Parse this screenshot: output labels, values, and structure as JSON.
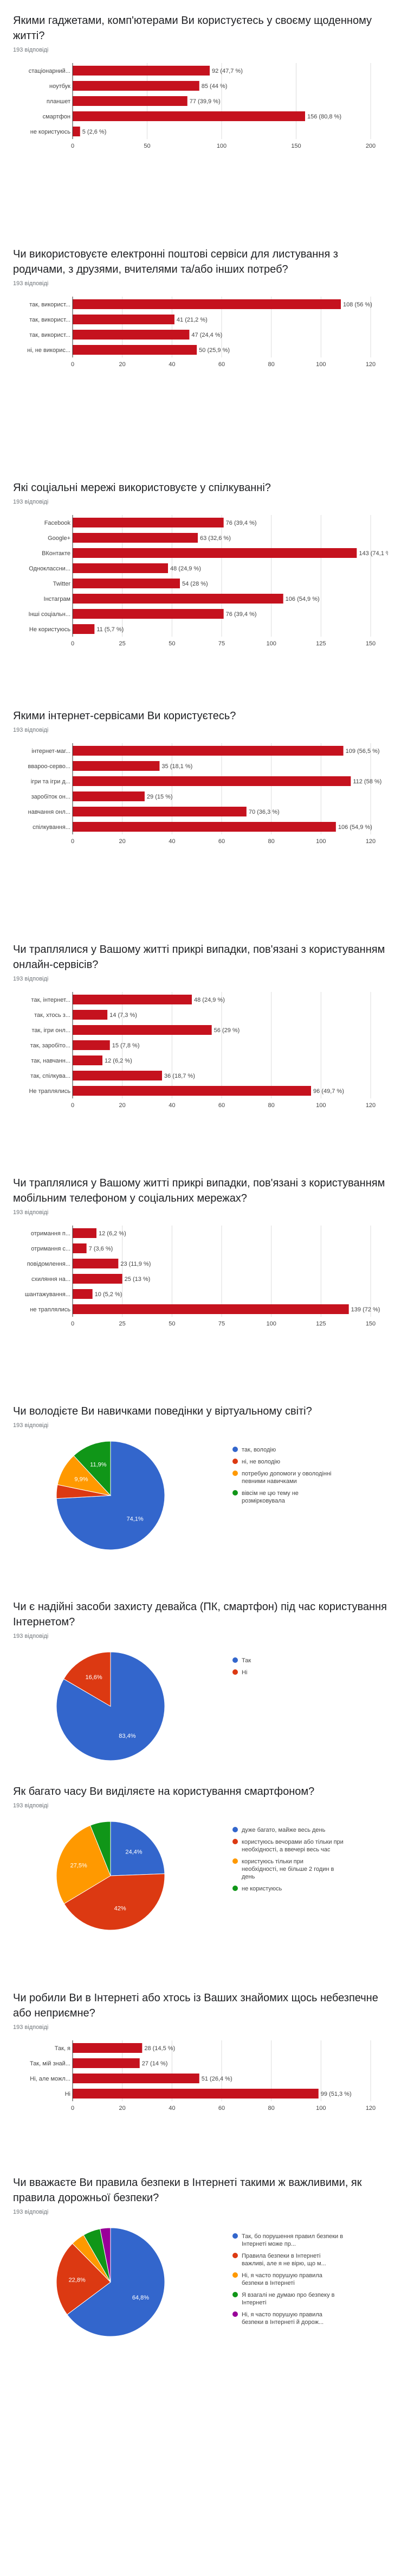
{
  "charts": [
    {
      "title": "Якими гаджетами, комп'ютерами Ви користуєтесь у своєму щоденному житті?",
      "count": "193 відповіді",
      "chart_data": {
        "type": "bar",
        "orientation": "horizontal",
        "categories": [
          "стаціонарний...",
          "ноутбук",
          "планшет",
          "смартфон",
          "не користуюсь"
        ],
        "values": [
          92,
          85,
          77,
          156,
          5
        ],
        "value_labels": [
          "92 (47,7 %)",
          "85 (44 %)",
          "77 (39,9 %)",
          "156 (80,8 %)",
          "5 (2,6 %)"
        ],
        "xlim": [
          0,
          200
        ],
        "ticks": [
          "0",
          "50",
          "100",
          "150",
          "200"
        ],
        "color": "#c5121e"
      }
    },
    {
      "title": "Чи використовуєте електронні поштові сервіси для листування з родичами, з друзями, вчителями та/або інших потреб?",
      "count": "193 відповіді",
      "chart_data": {
        "type": "bar",
        "orientation": "horizontal",
        "categories": [
          "так, використ...",
          "так, використ...",
          "так, використ...",
          "ні, не викорис..."
        ],
        "values": [
          108,
          41,
          47,
          50
        ],
        "value_labels": [
          "108 (56 %)",
          "41 (21,2 %)",
          "47 (24,4 %)",
          "50 (25,9 %)"
        ],
        "xlim": [
          0,
          120
        ],
        "ticks": [
          "0",
          "20",
          "40",
          "60",
          "80",
          "100",
          "120"
        ],
        "color": "#c5121e"
      }
    },
    {
      "title": "Які соціальні мережі використовуєте у спілкуванні?",
      "count": "193 відповіді",
      "chart_data": {
        "type": "bar",
        "orientation": "horizontal",
        "categories": [
          "Facebook",
          "Google+",
          "ВКонтакте",
          "Одноклассни...",
          "Twitter",
          "Інстаграм",
          "Інші соціальн...",
          "Не користуюсь"
        ],
        "values": [
          76,
          63,
          143,
          48,
          54,
          106,
          76,
          11
        ],
        "value_labels": [
          "76 (39,4 %)",
          "63 (32,6 %)",
          "143 (74,1 %)",
          "48 (24,9 %)",
          "54 (28 %)",
          "106 (54,9 %)",
          "76 (39,4 %)",
          "11 (5,7 %)"
        ],
        "xlim": [
          0,
          150
        ],
        "ticks": [
          "0",
          "25",
          "50",
          "75",
          "100",
          "125",
          "150"
        ],
        "color": "#c5121e"
      }
    },
    {
      "title": "Якими інтернет-сервісами Ви користуєтесь?",
      "count": "193 відповіді",
      "chart_data": {
        "type": "bar",
        "orientation": "horizontal",
        "categories": [
          "інтернет-маг...",
          "ввароо-серво...",
          "ігри та ігри д...",
          "заробіток он...",
          "навчання онл...",
          "спілкування..."
        ],
        "values": [
          109,
          35,
          112,
          29,
          70,
          106
        ],
        "value_labels": [
          "109 (56,5 %)",
          "35 (18,1 %)",
          "112 (58 %)",
          "29 (15 %)",
          "70 (36,3 %)",
          "106 (54,9 %)"
        ],
        "xlim": [
          0,
          120
        ],
        "ticks": [
          "0",
          "20",
          "40",
          "60",
          "80",
          "100",
          "120"
        ],
        "color": "#c5121e"
      }
    },
    {
      "title": "Чи траплялися у Вашому житті прикрі випадки, пов'язані з користуванням онлайн-сервісів?",
      "count": "193 відповіді",
      "chart_data": {
        "type": "bar",
        "orientation": "horizontal",
        "categories": [
          "так, інтернет...",
          "так, хтось з...",
          "так, ігри онл...",
          "так, заробіто...",
          "так, навчанн...",
          "так, спілкува...",
          "Не траплялись"
        ],
        "values": [
          48,
          14,
          56,
          15,
          12,
          36,
          96
        ],
        "value_labels": [
          "48 (24,9 %)",
          "14 (7,3 %)",
          "56 (29 %)",
          "15 (7,8 %)",
          "12 (6,2 %)",
          "36 (18,7 %)",
          "96 (49,7 %)"
        ],
        "xlim": [
          0,
          120
        ],
        "ticks": [
          "0",
          "20",
          "40",
          "60",
          "80",
          "100",
          "120"
        ],
        "color": "#c5121e"
      }
    },
    {
      "title": "Чи траплялися у Вашому житті прикрі випадки, пов'язані з користуванням мобільним телефоном у соціальних мережах?",
      "count": "193 відповіді",
      "chart_data": {
        "type": "bar",
        "orientation": "horizontal",
        "categories": [
          "отримання п...",
          "отримання с...",
          "повідомлення...",
          "схиляння на...",
          "шантажування...",
          "не траплялись"
        ],
        "values": [
          12,
          7,
          23,
          25,
          10,
          139
        ],
        "value_labels": [
          "12 (6,2 %)",
          "7 (3,6 %)",
          "23 (11,9 %)",
          "25 (13 %)",
          "10 (5,2 %)",
          "139 (72 %)"
        ],
        "xlim": [
          0,
          150
        ],
        "ticks": [
          "0",
          "25",
          "50",
          "75",
          "100",
          "125",
          "150"
        ],
        "color": "#c5121e"
      }
    },
    {
      "title": "Чи володієте Ви навичками поведінки у віртуальному світі?",
      "count": "193 відповіді",
      "chart_data": {
        "type": "pie",
        "slices": [
          {
            "label": "так, володію",
            "value": 74.1,
            "color": "#3366cc",
            "show": "74,1%"
          },
          {
            "label": "ні, не володію",
            "value": 4.1,
            "color": "#dc3912",
            "show": ""
          },
          {
            "label": "потребую допомоги у оволодінні певними навичками",
            "value": 9.9,
            "color": "#ff9900",
            "show": "9,9%"
          },
          {
            "label": "вівсім не цю тему не розмірковувала",
            "value": 11.9,
            "color": "#109618",
            "show": "11,9%"
          }
        ]
      }
    },
    {
      "title": "Чи є надійні засоби захисту девайса (ПК, смартфон) під час користування Інтернетом?",
      "count": "193 відповіді",
      "chart_data": {
        "type": "pie",
        "slices": [
          {
            "label": "Так",
            "value": 83.4,
            "color": "#3366cc",
            "show": "83,4%"
          },
          {
            "label": "Ні",
            "value": 16.6,
            "color": "#dc3912",
            "show": "16,6%"
          }
        ]
      }
    },
    {
      "title": "Як багато часу Ви виділяєте на користування смартфоном?",
      "count": "193 відповіді",
      "chart_data": {
        "type": "pie",
        "slices": [
          {
            "label": "дуже багато, майже весь день",
            "value": 24.4,
            "color": "#3366cc",
            "show": "24,4%"
          },
          {
            "label": "користуюсь вечорами або тільки при необхідності, а ввечері весь час",
            "value": 42,
            "color": "#dc3912",
            "show": "42%"
          },
          {
            "label": "користуюсь тільки при необхідності, не більше 2 годин в день",
            "value": 27.5,
            "color": "#ff9900",
            "show": "27,5%"
          },
          {
            "label": "не користуюсь",
            "value": 6.1,
            "color": "#109618",
            "show": ""
          }
        ]
      }
    },
    {
      "title": "Чи робили Ви в Інтернеті або хтось із Ваших знайомих щось небезпечне або неприємне?",
      "count": "193 відповіді",
      "chart_data": {
        "type": "bar",
        "orientation": "horizontal",
        "categories": [
          "Так, я",
          "Так, мій знай...",
          "Ні, але можл...",
          "Ні"
        ],
        "values": [
          28,
          27,
          51,
          99
        ],
        "value_labels": [
          "28 (14,5 %)",
          "27 (14 %)",
          "51 (26,4 %)",
          "99 (51,3 %)"
        ],
        "xlim": [
          0,
          120
        ],
        "ticks": [
          "0",
          "20",
          "40",
          "60",
          "80",
          "100",
          "120"
        ],
        "color": "#c5121e"
      }
    },
    {
      "title": "Чи вважаєте Ви правила безпеки в Інтернеті такими ж важливими, як правила дорожньої безпеки?",
      "count": "193 відповіді",
      "chart_data": {
        "type": "pie",
        "slices": [
          {
            "label": "Так, бо порушення правил безпеки в Інтернеті може пр...",
            "value": 64.8,
            "color": "#3366cc",
            "show": "64,8%"
          },
          {
            "label": "Правила безпеки в Інтернеті важливі, але я не вірю, що м...",
            "value": 22.8,
            "color": "#dc3912",
            "show": "22,8%"
          },
          {
            "label": "Ні, я часто порушую правила безпеки в Інтернеті",
            "value": 4.1,
            "color": "#ff9900",
            "show": ""
          },
          {
            "label": "Я взагалі не думаю про безпеку в Інтернеті",
            "value": 5.2,
            "color": "#109618",
            "show": ""
          },
          {
            "label": "Ні, я часто порушую правила безпеки в Інтернеті й дорож...",
            "value": 3.1,
            "color": "#990099",
            "show": ""
          }
        ]
      }
    }
  ]
}
